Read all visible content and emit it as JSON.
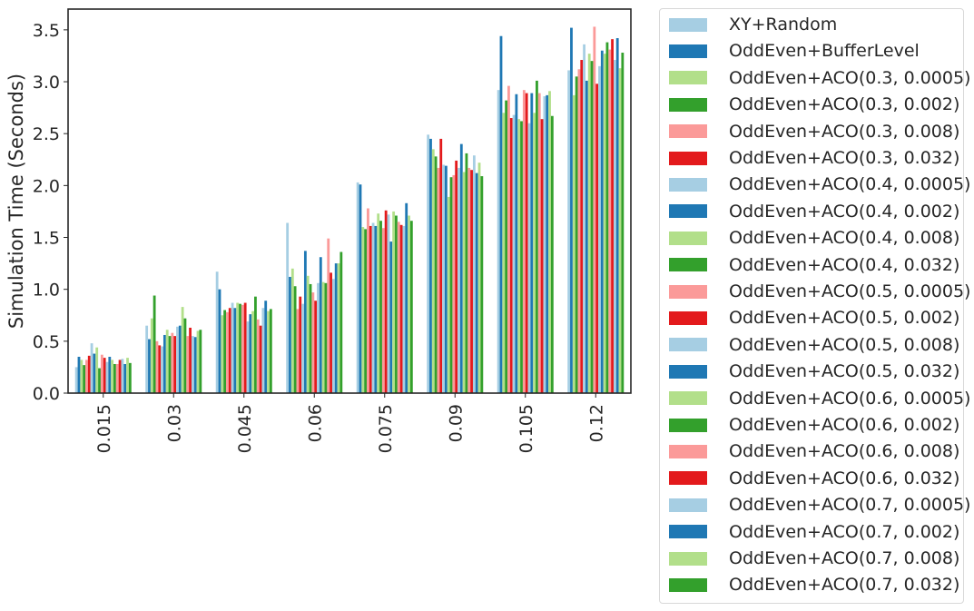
{
  "chart_data": {
    "type": "bar",
    "xlabel": "",
    "ylabel": "Simulation Time (Seconds)",
    "ylim": [
      0,
      3.7
    ],
    "yticks": [
      0.0,
      0.5,
      1.0,
      1.5,
      2.0,
      2.5,
      3.0,
      3.5
    ],
    "ytick_labels": [
      "0.0",
      "0.5",
      "1.0",
      "1.5",
      "2.0",
      "2.5",
      "3.0",
      "3.5"
    ],
    "categories": [
      "0.015",
      "0.03",
      "0.045",
      "0.06",
      "0.075",
      "0.09",
      "0.105",
      "0.12"
    ],
    "grid": false,
    "legend_position": "outside-right",
    "series": [
      {
        "name": "XY+Random",
        "color": "#a6cee3",
        "values": [
          0.25,
          0.65,
          1.17,
          1.64,
          2.03,
          2.49,
          2.92,
          3.11
        ]
      },
      {
        "name": "OddEven+BufferLevel",
        "color": "#1f78b4",
        "values": [
          0.35,
          0.52,
          1.0,
          1.12,
          2.01,
          2.45,
          3.44,
          3.52
        ]
      },
      {
        "name": "OddEven+ACO(0.3, 0.0005)",
        "color": "#b2df8a",
        "values": [
          0.32,
          0.72,
          0.75,
          1.2,
          1.6,
          2.35,
          2.7,
          2.87
        ]
      },
      {
        "name": "OddEven+ACO(0.3, 0.002)",
        "color": "#33a02c",
        "values": [
          0.27,
          0.94,
          0.8,
          1.03,
          1.58,
          2.28,
          2.82,
          3.05
        ]
      },
      {
        "name": "OddEven+ACO(0.3, 0.008)",
        "color": "#fb9a99",
        "values": [
          0.32,
          0.5,
          0.78,
          0.81,
          1.78,
          2.17,
          2.96,
          3.12
        ]
      },
      {
        "name": "OddEven+ACO(0.3, 0.032)",
        "color": "#e31a1c",
        "values": [
          0.36,
          0.46,
          0.82,
          0.93,
          1.61,
          2.45,
          2.65,
          3.21
        ]
      },
      {
        "name": "OddEven+ACO(0.4, 0.0005)",
        "color": "#a6cee3",
        "values": [
          0.48,
          0.45,
          0.87,
          0.86,
          1.64,
          2.2,
          2.68,
          3.36
        ]
      },
      {
        "name": "OddEven+ACO(0.4, 0.002)",
        "color": "#1f78b4",
        "values": [
          0.38,
          0.56,
          0.82,
          1.37,
          1.61,
          2.19,
          2.88,
          3.01
        ]
      },
      {
        "name": "OddEven+ACO(0.4, 0.008)",
        "color": "#b2df8a",
        "values": [
          0.44,
          0.61,
          0.87,
          1.13,
          1.73,
          1.89,
          2.64,
          3.27
        ]
      },
      {
        "name": "OddEven+ACO(0.4, 0.032)",
        "color": "#33a02c",
        "values": [
          0.24,
          0.55,
          0.86,
          1.05,
          1.66,
          2.08,
          2.62,
          3.2
        ]
      },
      {
        "name": "OddEven+ACO(0.5, 0.0005)",
        "color": "#fb9a99",
        "values": [
          0.37,
          0.58,
          0.85,
          0.97,
          1.59,
          2.1,
          2.92,
          3.53
        ]
      },
      {
        "name": "OddEven+ACO(0.5, 0.002)",
        "color": "#e31a1c",
        "values": [
          0.34,
          0.55,
          0.87,
          0.89,
          1.76,
          2.24,
          2.89,
          2.98
        ]
      },
      {
        "name": "OddEven+ACO(0.5, 0.008)",
        "color": "#a6cee3",
        "values": [
          0.3,
          0.64,
          0.69,
          1.06,
          1.72,
          2.17,
          2.6,
          3.15
        ]
      },
      {
        "name": "OddEven+ACO(0.5, 0.032)",
        "color": "#1f78b4",
        "values": [
          0.35,
          0.65,
          0.76,
          1.31,
          1.46,
          2.4,
          2.89,
          3.3
        ]
      },
      {
        "name": "OddEven+ACO(0.6, 0.0005)",
        "color": "#b2df8a",
        "values": [
          0.32,
          0.83,
          0.79,
          1.07,
          1.75,
          2.13,
          2.7,
          3.27
        ]
      },
      {
        "name": "OddEven+ACO(0.6, 0.002)",
        "color": "#33a02c",
        "values": [
          0.28,
          0.72,
          0.93,
          1.06,
          1.71,
          2.31,
          3.01,
          3.38
        ]
      },
      {
        "name": "OddEven+ACO(0.6, 0.008)",
        "color": "#fb9a99",
        "values": [
          0.28,
          0.55,
          0.71,
          1.49,
          1.65,
          2.17,
          2.89,
          3.31
        ]
      },
      {
        "name": "OddEven+ACO(0.6, 0.032)",
        "color": "#e31a1c",
        "values": [
          0.32,
          0.63,
          0.65,
          1.16,
          1.62,
          2.15,
          2.64,
          3.41
        ]
      },
      {
        "name": "OddEven+ACO(0.7, 0.0005)",
        "color": "#a6cee3",
        "values": [
          0.33,
          0.55,
          0.82,
          1.1,
          1.61,
          2.29,
          2.86,
          3.21
        ]
      },
      {
        "name": "OddEven+ACO(0.7, 0.002)",
        "color": "#1f78b4",
        "values": [
          0.28,
          0.54,
          0.89,
          1.25,
          1.83,
          2.12,
          2.87,
          3.42
        ]
      },
      {
        "name": "OddEven+ACO(0.7, 0.008)",
        "color": "#b2df8a",
        "values": [
          0.34,
          0.6,
          0.79,
          1.25,
          1.71,
          2.22,
          2.91,
          3.13
        ]
      },
      {
        "name": "OddEven+ACO(0.7, 0.032)",
        "color": "#33a02c",
        "values": [
          0.29,
          0.61,
          0.81,
          1.36,
          1.66,
          2.09,
          2.67,
          3.28
        ]
      }
    ]
  }
}
